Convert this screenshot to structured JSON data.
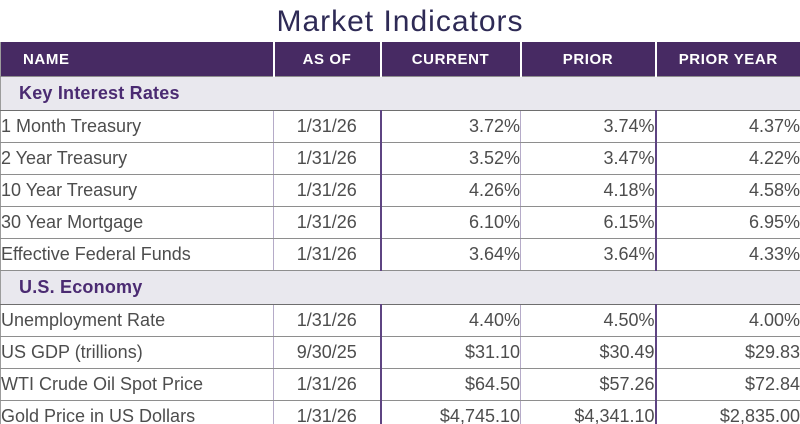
{
  "colors": {
    "header_bg": "#472a63",
    "header_text": "#ffffff",
    "section_bg": "#e9e8ee",
    "section_text": "#4b2b72",
    "title_text": "#2e2a55",
    "row_text": "#4d4d4d",
    "border_light_purple": "#b5abc8",
    "border_dark_purple": "#5e4482",
    "row_border": "#8e8e8e"
  },
  "chart_data": {
    "type": "table",
    "title": "Market Indicators",
    "columns": [
      "NAME",
      "AS OF",
      "CURRENT",
      "PRIOR",
      "PRIOR YEAR"
    ],
    "sections": [
      {
        "label": "Key Interest Rates",
        "rows": [
          {
            "name": "1 Month Treasury",
            "as_of": "1/31/26",
            "current": "3.72%",
            "prior": "3.74%",
            "prior_year": "4.37%"
          },
          {
            "name": "2 Year Treasury",
            "as_of": "1/31/26",
            "current": "3.52%",
            "prior": "3.47%",
            "prior_year": "4.22%"
          },
          {
            "name": "10 Year Treasury",
            "as_of": "1/31/26",
            "current": "4.26%",
            "prior": "4.18%",
            "prior_year": "4.58%"
          },
          {
            "name": "30 Year Mortgage",
            "as_of": "1/31/26",
            "current": "6.10%",
            "prior": "6.15%",
            "prior_year": "6.95%"
          },
          {
            "name": "Effective Federal Funds",
            "as_of": "1/31/26",
            "current": "3.64%",
            "prior": "3.64%",
            "prior_year": "4.33%"
          }
        ]
      },
      {
        "label": "U.S. Economy",
        "rows": [
          {
            "name": "Unemployment Rate",
            "as_of": "1/31/26",
            "current": "4.40%",
            "prior": "4.50%",
            "prior_year": "4.00%"
          },
          {
            "name": "US GDP (trillions)",
            "as_of": "9/30/25",
            "current": "$31.10",
            "prior": "$30.49",
            "prior_year": "$29.83"
          },
          {
            "name": "WTI Crude Oil Spot Price",
            "as_of": "1/31/26",
            "current": "$64.50",
            "prior": "$57.26",
            "prior_year": "$72.84"
          },
          {
            "name": "Gold Price in US Dollars",
            "as_of": "1/31/26",
            "current": "$4,745.10",
            "prior": "$4,341.10",
            "prior_year": "$2,835.00"
          }
        ]
      }
    ]
  }
}
